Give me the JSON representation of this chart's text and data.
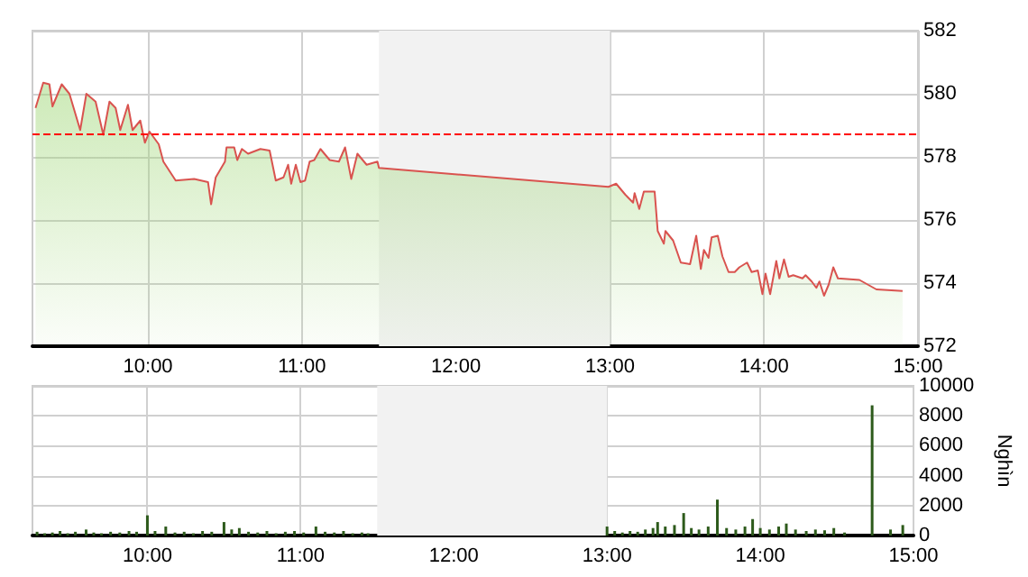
{
  "chart_data": [
    {
      "type": "area",
      "xlim": [
        9.25,
        15
      ],
      "xticks": [
        {
          "value": 10,
          "label": "10:00"
        },
        {
          "value": 11,
          "label": "11:00"
        },
        {
          "value": 12,
          "label": "12:00"
        },
        {
          "value": 13,
          "label": "13:00"
        },
        {
          "value": 14,
          "label": "14:00"
        },
        {
          "value": 15,
          "label": "15:00"
        }
      ],
      "ylim": [
        572,
        582
      ],
      "yticks": [
        572,
        574,
        576,
        578,
        580,
        582
      ],
      "grid": true,
      "ref_lines": [
        {
          "axis": "y",
          "value": 578.7,
          "color": "#ff0000",
          "line_style": "dashed"
        }
      ],
      "bands": [
        {
          "axis": "x",
          "from": 11.5,
          "to": 13,
          "color": "#f2f2f2"
        }
      ],
      "series": [
        {
          "color": "#d9534f",
          "x": [
            9.27,
            9.32,
            9.36,
            9.38,
            9.44,
            9.49,
            9.56,
            9.6,
            9.66,
            9.71,
            9.75,
            9.79,
            9.82,
            9.87,
            9.9,
            9.95,
            9.98,
            10.01,
            10.07,
            10.1,
            10.18,
            10.3,
            10.39,
            10.41,
            10.44,
            10.5,
            10.51,
            10.56,
            10.58,
            10.61,
            10.65,
            10.73,
            10.79,
            10.83,
            10.88,
            10.91,
            10.93,
            10.96,
            10.99,
            11.02,
            11.05,
            11.08,
            11.12,
            11.18,
            11.24,
            11.28,
            11.32,
            11.36,
            11.42,
            11.49,
            11.5,
            12.99,
            13.04,
            13.1,
            13.15,
            13.16,
            13.19,
            13.22,
            13.29,
            13.31,
            13.35,
            13.36,
            13.41,
            13.46,
            13.52,
            13.56,
            13.59,
            13.61,
            13.64,
            13.66,
            13.7,
            13.73,
            13.77,
            13.81,
            13.84,
            13.89,
            13.92,
            13.96,
            13.99,
            14.01,
            14.04,
            14.08,
            14.1,
            14.13,
            14.16,
            14.19,
            14.25,
            14.27,
            14.31,
            14.34,
            14.36,
            14.39,
            14.42,
            14.45,
            14.48,
            14.62,
            14.73,
            14.9
          ],
          "values": [
            579.55,
            580.35,
            580.3,
            579.6,
            580.3,
            580.0,
            578.85,
            580.0,
            579.75,
            578.7,
            579.75,
            579.55,
            578.85,
            579.65,
            578.85,
            579.15,
            578.45,
            578.8,
            578.4,
            577.85,
            577.25,
            577.3,
            577.2,
            576.5,
            577.35,
            577.85,
            578.3,
            578.3,
            577.9,
            578.25,
            578.1,
            578.25,
            578.2,
            577.25,
            577.35,
            577.75,
            577.15,
            577.75,
            577.2,
            577.25,
            577.85,
            577.9,
            578.25,
            577.9,
            577.85,
            578.3,
            577.3,
            578.1,
            577.75,
            577.85,
            577.65,
            577.05,
            577.15,
            576.8,
            576.55,
            576.85,
            576.35,
            576.9,
            576.9,
            575.65,
            575.25,
            575.65,
            575.35,
            574.65,
            574.6,
            575.5,
            574.45,
            575.05,
            574.8,
            575.45,
            575.5,
            574.85,
            574.35,
            574.35,
            574.5,
            574.65,
            574.35,
            574.4,
            573.65,
            574.3,
            573.65,
            574.7,
            574.15,
            574.75,
            574.2,
            574.25,
            574.15,
            574.25,
            574.05,
            573.85,
            574.05,
            573.6,
            573.95,
            574.5,
            574.15,
            574.1,
            573.8,
            573.75
          ]
        }
      ]
    },
    {
      "type": "bar",
      "xlim": [
        9.25,
        15
      ],
      "xticks": [
        {
          "value": 10,
          "label": "10:00"
        },
        {
          "value": 11,
          "label": "11:00"
        },
        {
          "value": 12,
          "label": "12:00"
        },
        {
          "value": 13,
          "label": "13:00"
        },
        {
          "value": 14,
          "label": "14:00"
        },
        {
          "value": 15,
          "label": "15:00"
        }
      ],
      "ylim": [
        0,
        10000
      ],
      "yticks": [
        0,
        2000,
        4000,
        6000,
        8000,
        10000
      ],
      "ylabel": "Nghìn",
      "grid": true,
      "bands": [
        {
          "axis": "x",
          "from": 11.5,
          "to": 13,
          "color": "#f2f2f2"
        }
      ],
      "series": [
        {
          "color": "#2d5a1b",
          "x": [
            9.28,
            9.33,
            9.38,
            9.43,
            9.48,
            9.53,
            9.6,
            9.65,
            9.7,
            9.76,
            9.82,
            9.88,
            9.93,
            10.0,
            10.05,
            10.12,
            10.18,
            10.24,
            10.3,
            10.36,
            10.42,
            10.5,
            10.55,
            10.6,
            10.66,
            10.72,
            10.78,
            10.84,
            10.9,
            10.96,
            11.02,
            11.1,
            11.16,
            11.22,
            11.28,
            11.34,
            11.4,
            11.44,
            13.0,
            13.05,
            13.1,
            13.15,
            13.2,
            13.25,
            13.3,
            13.33,
            13.38,
            13.44,
            13.5,
            13.55,
            13.6,
            13.66,
            13.72,
            13.78,
            13.84,
            13.9,
            13.95,
            14.0,
            14.06,
            14.12,
            14.17,
            14.23,
            14.3,
            14.36,
            14.42,
            14.48,
            14.55,
            14.73,
            14.85,
            14.93
          ],
          "values": [
            250,
            150,
            200,
            300,
            150,
            250,
            400,
            200,
            150,
            250,
            200,
            300,
            250,
            1350,
            300,
            600,
            200,
            250,
            150,
            300,
            250,
            900,
            400,
            500,
            250,
            200,
            300,
            150,
            250,
            300,
            200,
            600,
            250,
            200,
            300,
            150,
            200,
            150,
            600,
            300,
            200,
            300,
            250,
            400,
            500,
            900,
            600,
            700,
            1500,
            500,
            400,
            600,
            2400,
            500,
            400,
            600,
            1100,
            500,
            400,
            600,
            800,
            400,
            300,
            400,
            350,
            500,
            200,
            8700,
            400,
            700
          ]
        }
      ]
    }
  ]
}
